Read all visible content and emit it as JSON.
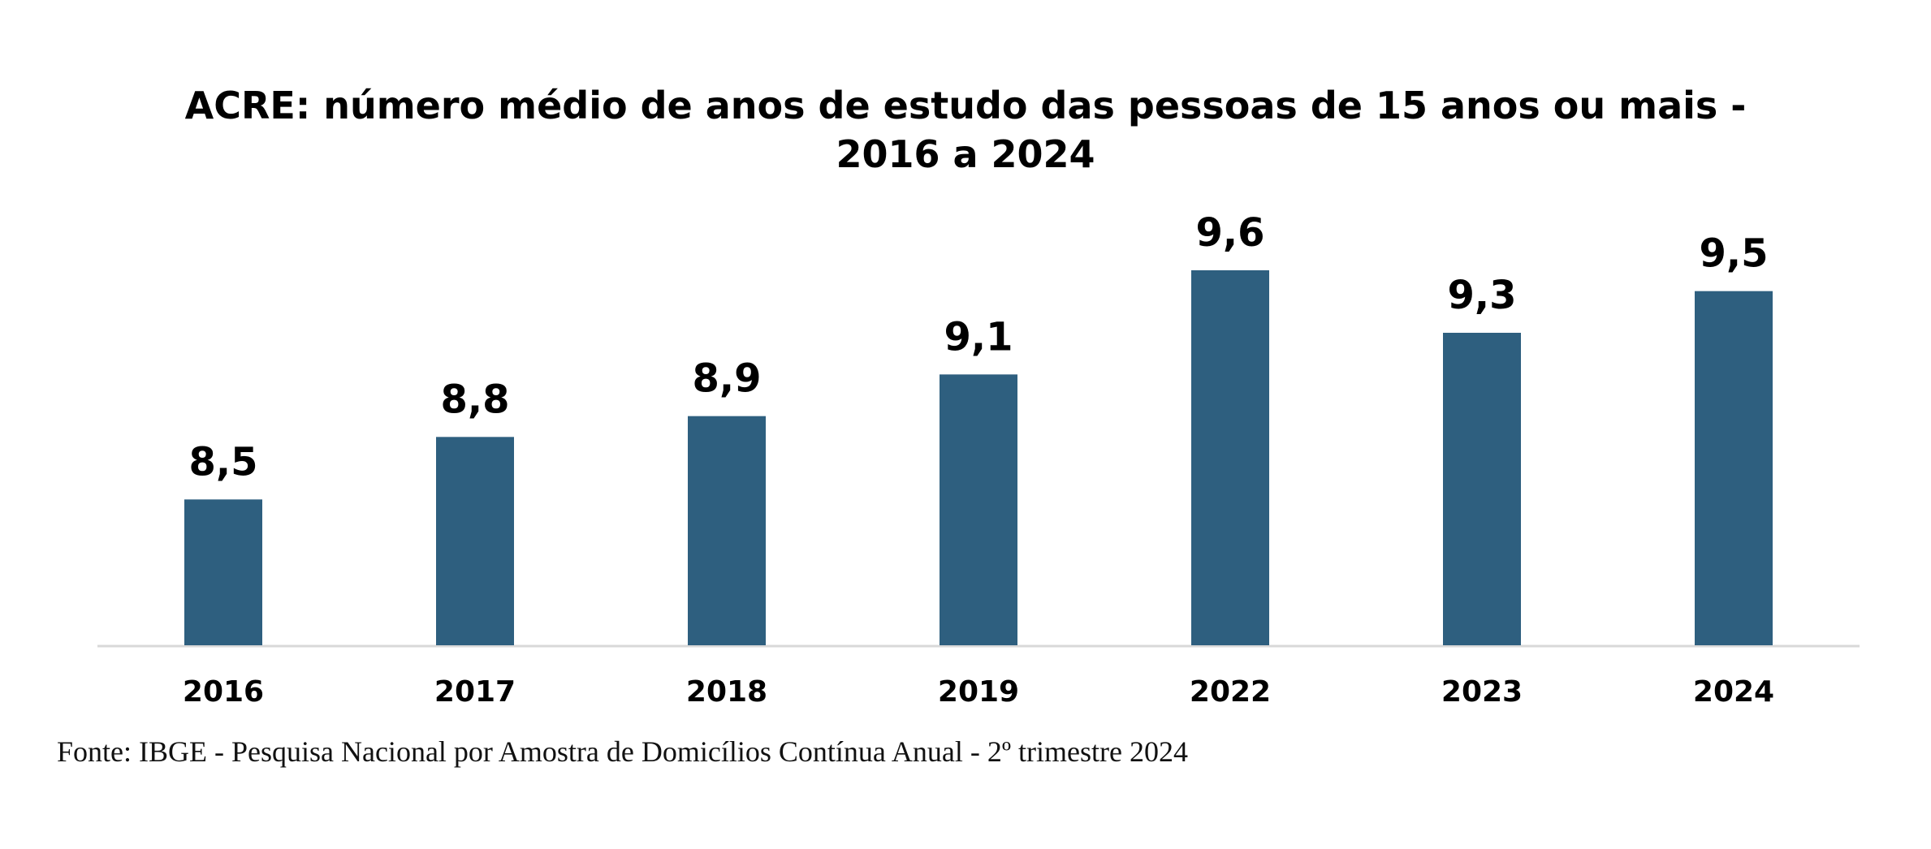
{
  "chart_data": {
    "type": "bar",
    "title": "ACRE: número médio de anos de estudo das pessoas de 15 anos ou mais -",
    "subtitle": "2016 a 2024",
    "categories": [
      "2016",
      "2017",
      "2018",
      "2019",
      "2022",
      "2023",
      "2024"
    ],
    "values": [
      8.5,
      8.8,
      8.9,
      9.1,
      9.6,
      9.3,
      9.5
    ],
    "data_labels": [
      "8,5",
      "8,8",
      "8,9",
      "9,1",
      "9,6",
      "9,3",
      "9,5"
    ],
    "xlabel": "",
    "ylabel": "",
    "ylim": [
      7.8,
      9.6
    ],
    "grid": false,
    "legend": "none",
    "bar_color": "#2e5f7f",
    "axis_color": "#d9d9d9"
  },
  "footer": {
    "source": "Fonte: IBGE - Pesquisa Nacional por Amostra de Domicílios Contínua Anual - 2º trimestre 2024"
  }
}
